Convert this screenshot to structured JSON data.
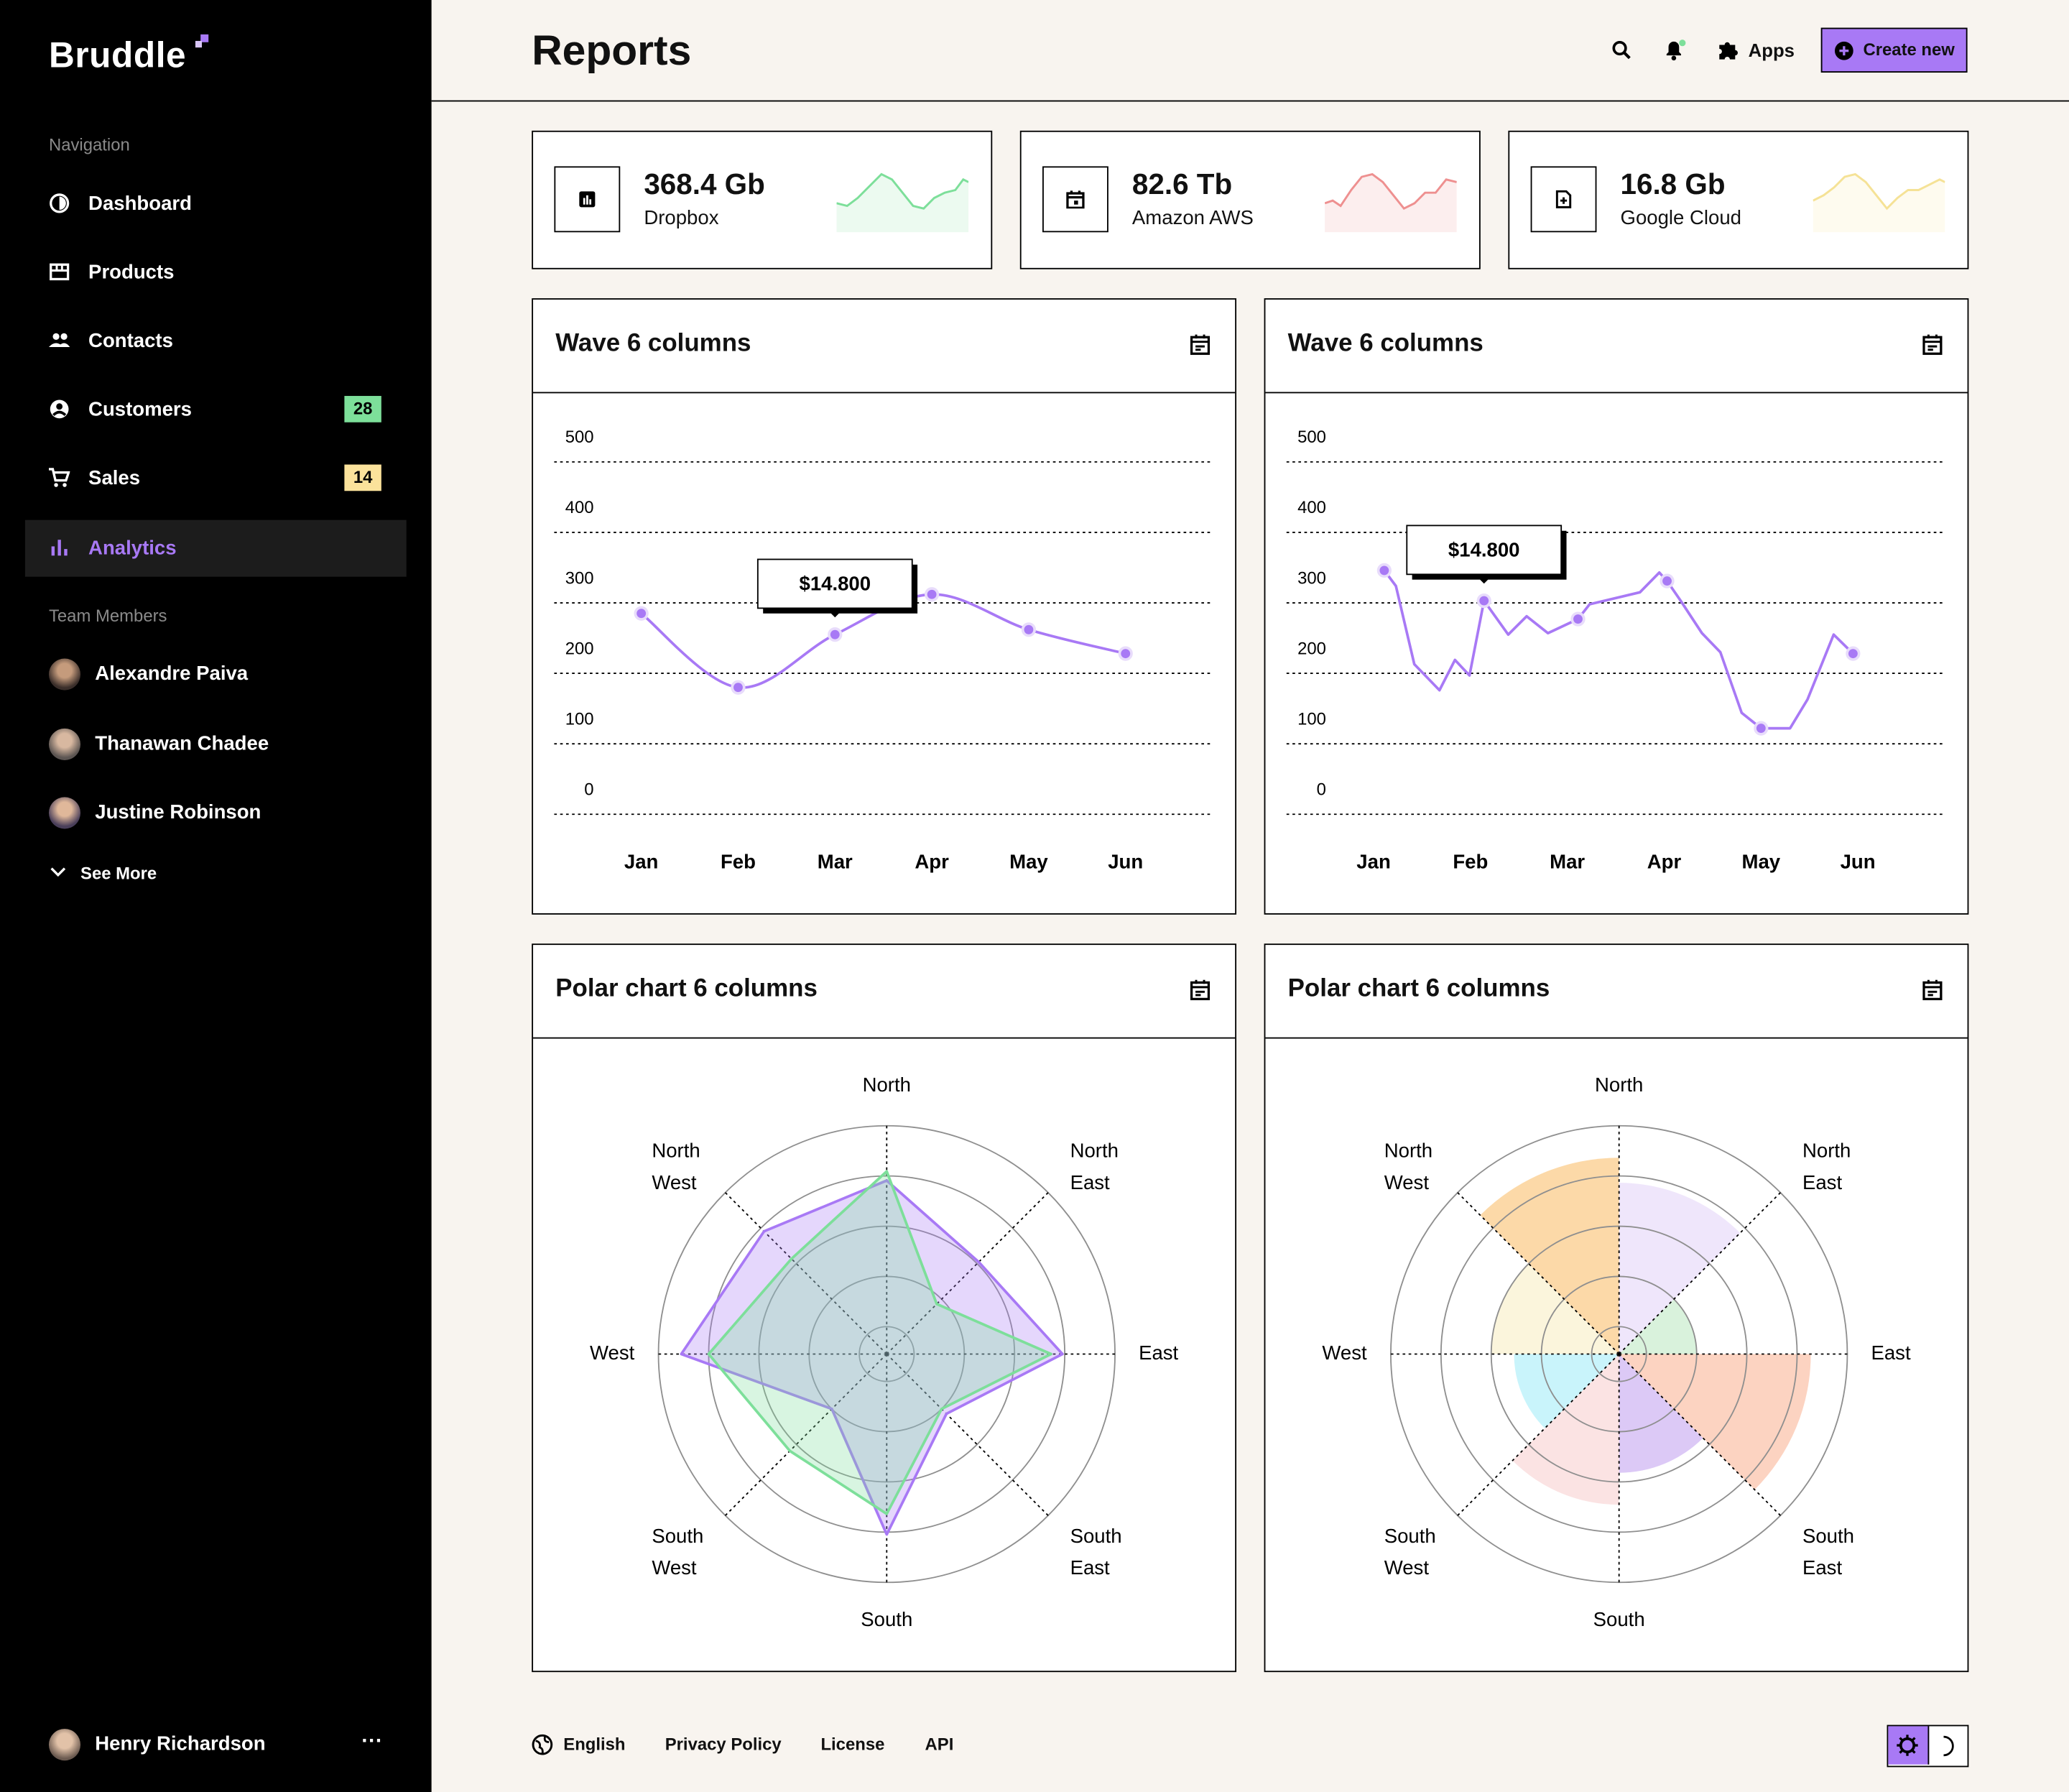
{
  "sidebar": {
    "brand": "Bruddle",
    "nav_heading": "Navigation",
    "nav": [
      {
        "label": "Dashboard"
      },
      {
        "label": "Products"
      },
      {
        "label": "Contacts"
      },
      {
        "label": "Customers",
        "badge": 28,
        "badge_color": "#7ddf9a"
      },
      {
        "label": "Sales",
        "badge": 14,
        "badge_color": "#fbe29b"
      },
      {
        "label": "Analytics",
        "active": true
      }
    ],
    "team_heading": "Team Members",
    "team": [
      "Alexandre Paiva",
      "Thanawan Chadee",
      "Justine Robinson"
    ],
    "see_more": "See More",
    "user": "Henry Richardson"
  },
  "header": {
    "title": "Reports",
    "apps": "Apps",
    "create": "Create new"
  },
  "stats": [
    {
      "value": "368.4 Gb",
      "label": "Dropbox",
      "color": "#7ddf9a"
    },
    {
      "value": "82.6 Tb",
      "label": "Amazon AWS",
      "color": "#ee9090"
    },
    {
      "value": "16.8 Gb",
      "label": "Google Cloud",
      "color": "#f5e296"
    }
  ],
  "chart_data": [
    {
      "type": "line",
      "title": "Wave 6 columns",
      "categories": [
        "Jan",
        "Feb",
        "Mar",
        "Apr",
        "May",
        "Jun"
      ],
      "values": [
        285,
        180,
        255,
        312,
        262,
        228
      ],
      "ylim": [
        0,
        500
      ],
      "yticks": [
        0,
        100,
        200,
        300,
        400,
        500
      ],
      "grid": true,
      "smooth": true,
      "color": "#a879f5",
      "tooltip": {
        "label": "$14.800",
        "index": 2
      }
    },
    {
      "type": "line",
      "title": "Wave 6 columns",
      "x": [
        0.11,
        0.23,
        0.42,
        0.68,
        0.84,
        0.99,
        1.14,
        1.39,
        1.58,
        1.8,
        2.11,
        2.23,
        2.75,
        2.95,
        3.03,
        3.17,
        3.39,
        3.58,
        3.8,
        4.0,
        4.3,
        4.48,
        4.75,
        4.95
      ],
      "values": [
        346,
        324,
        213,
        176,
        219,
        197,
        303,
        255,
        281,
        257,
        277,
        298,
        315,
        343,
        331,
        303,
        257,
        230,
        144,
        122,
        122,
        163,
        255,
        228
      ],
      "xlim": [
        -0.5,
        5.5
      ],
      "xticks": [
        {
          "value": 0,
          "label": "Jan"
        },
        {
          "value": 1,
          "label": "Feb"
        },
        {
          "value": 2,
          "label": "Mar"
        },
        {
          "value": 3,
          "label": "Apr"
        },
        {
          "value": 4,
          "label": "May"
        },
        {
          "value": 5,
          "label": "Jun"
        }
      ],
      "ylim": [
        0,
        500
      ],
      "yticks": [
        0,
        100,
        200,
        300,
        400,
        500
      ],
      "grid": true,
      "color": "#a879f5",
      "markers": [
        0,
        6,
        10,
        14,
        19,
        23
      ],
      "tooltip": {
        "label": "$14.800",
        "index": 6
      }
    },
    {
      "type": "radar",
      "title": "Polar chart 6 columns",
      "directions": [
        [
          "North"
        ],
        [
          "North",
          "East"
        ],
        [
          "East"
        ],
        [
          "South",
          "East"
        ],
        [
          "South"
        ],
        [
          "South",
          "West"
        ],
        [
          "West"
        ],
        [
          "North",
          "West"
        ]
      ],
      "rlim": [
        0,
        100
      ],
      "rticks": [
        12,
        34,
        56,
        78,
        100
      ],
      "series": [
        {
          "color": "#a879f5",
          "values": [
            76,
            57,
            77,
            37,
            79,
            34,
            90,
            76
          ]
        },
        {
          "color": "#7ddf9a",
          "values": [
            80,
            31,
            72,
            34,
            70,
            60,
            78,
            59
          ]
        }
      ]
    },
    {
      "type": "rose",
      "title": "Polar chart 6 columns",
      "directions": [
        [
          "North"
        ],
        [
          "North",
          "East"
        ],
        [
          "East"
        ],
        [
          "South",
          "East"
        ],
        [
          "South"
        ],
        [
          "South",
          "West"
        ],
        [
          "West"
        ],
        [
          "North",
          "West"
        ]
      ],
      "rlim": [
        0,
        100
      ],
      "rticks": [
        12,
        34,
        56,
        78,
        100
      ],
      "values": [
        75,
        34,
        84,
        52,
        66,
        46,
        56,
        86
      ],
      "colors": [
        "#efe6fb",
        "#d9f2dc",
        "#fcd3c1",
        "#dcc9f6",
        "#fbe3e3",
        "#c9f4fb",
        "#fbf5dc",
        "#fcd9a8"
      ]
    }
  ],
  "footer": {
    "links": [
      "English",
      "Privacy Policy",
      "License",
      "API"
    ]
  }
}
